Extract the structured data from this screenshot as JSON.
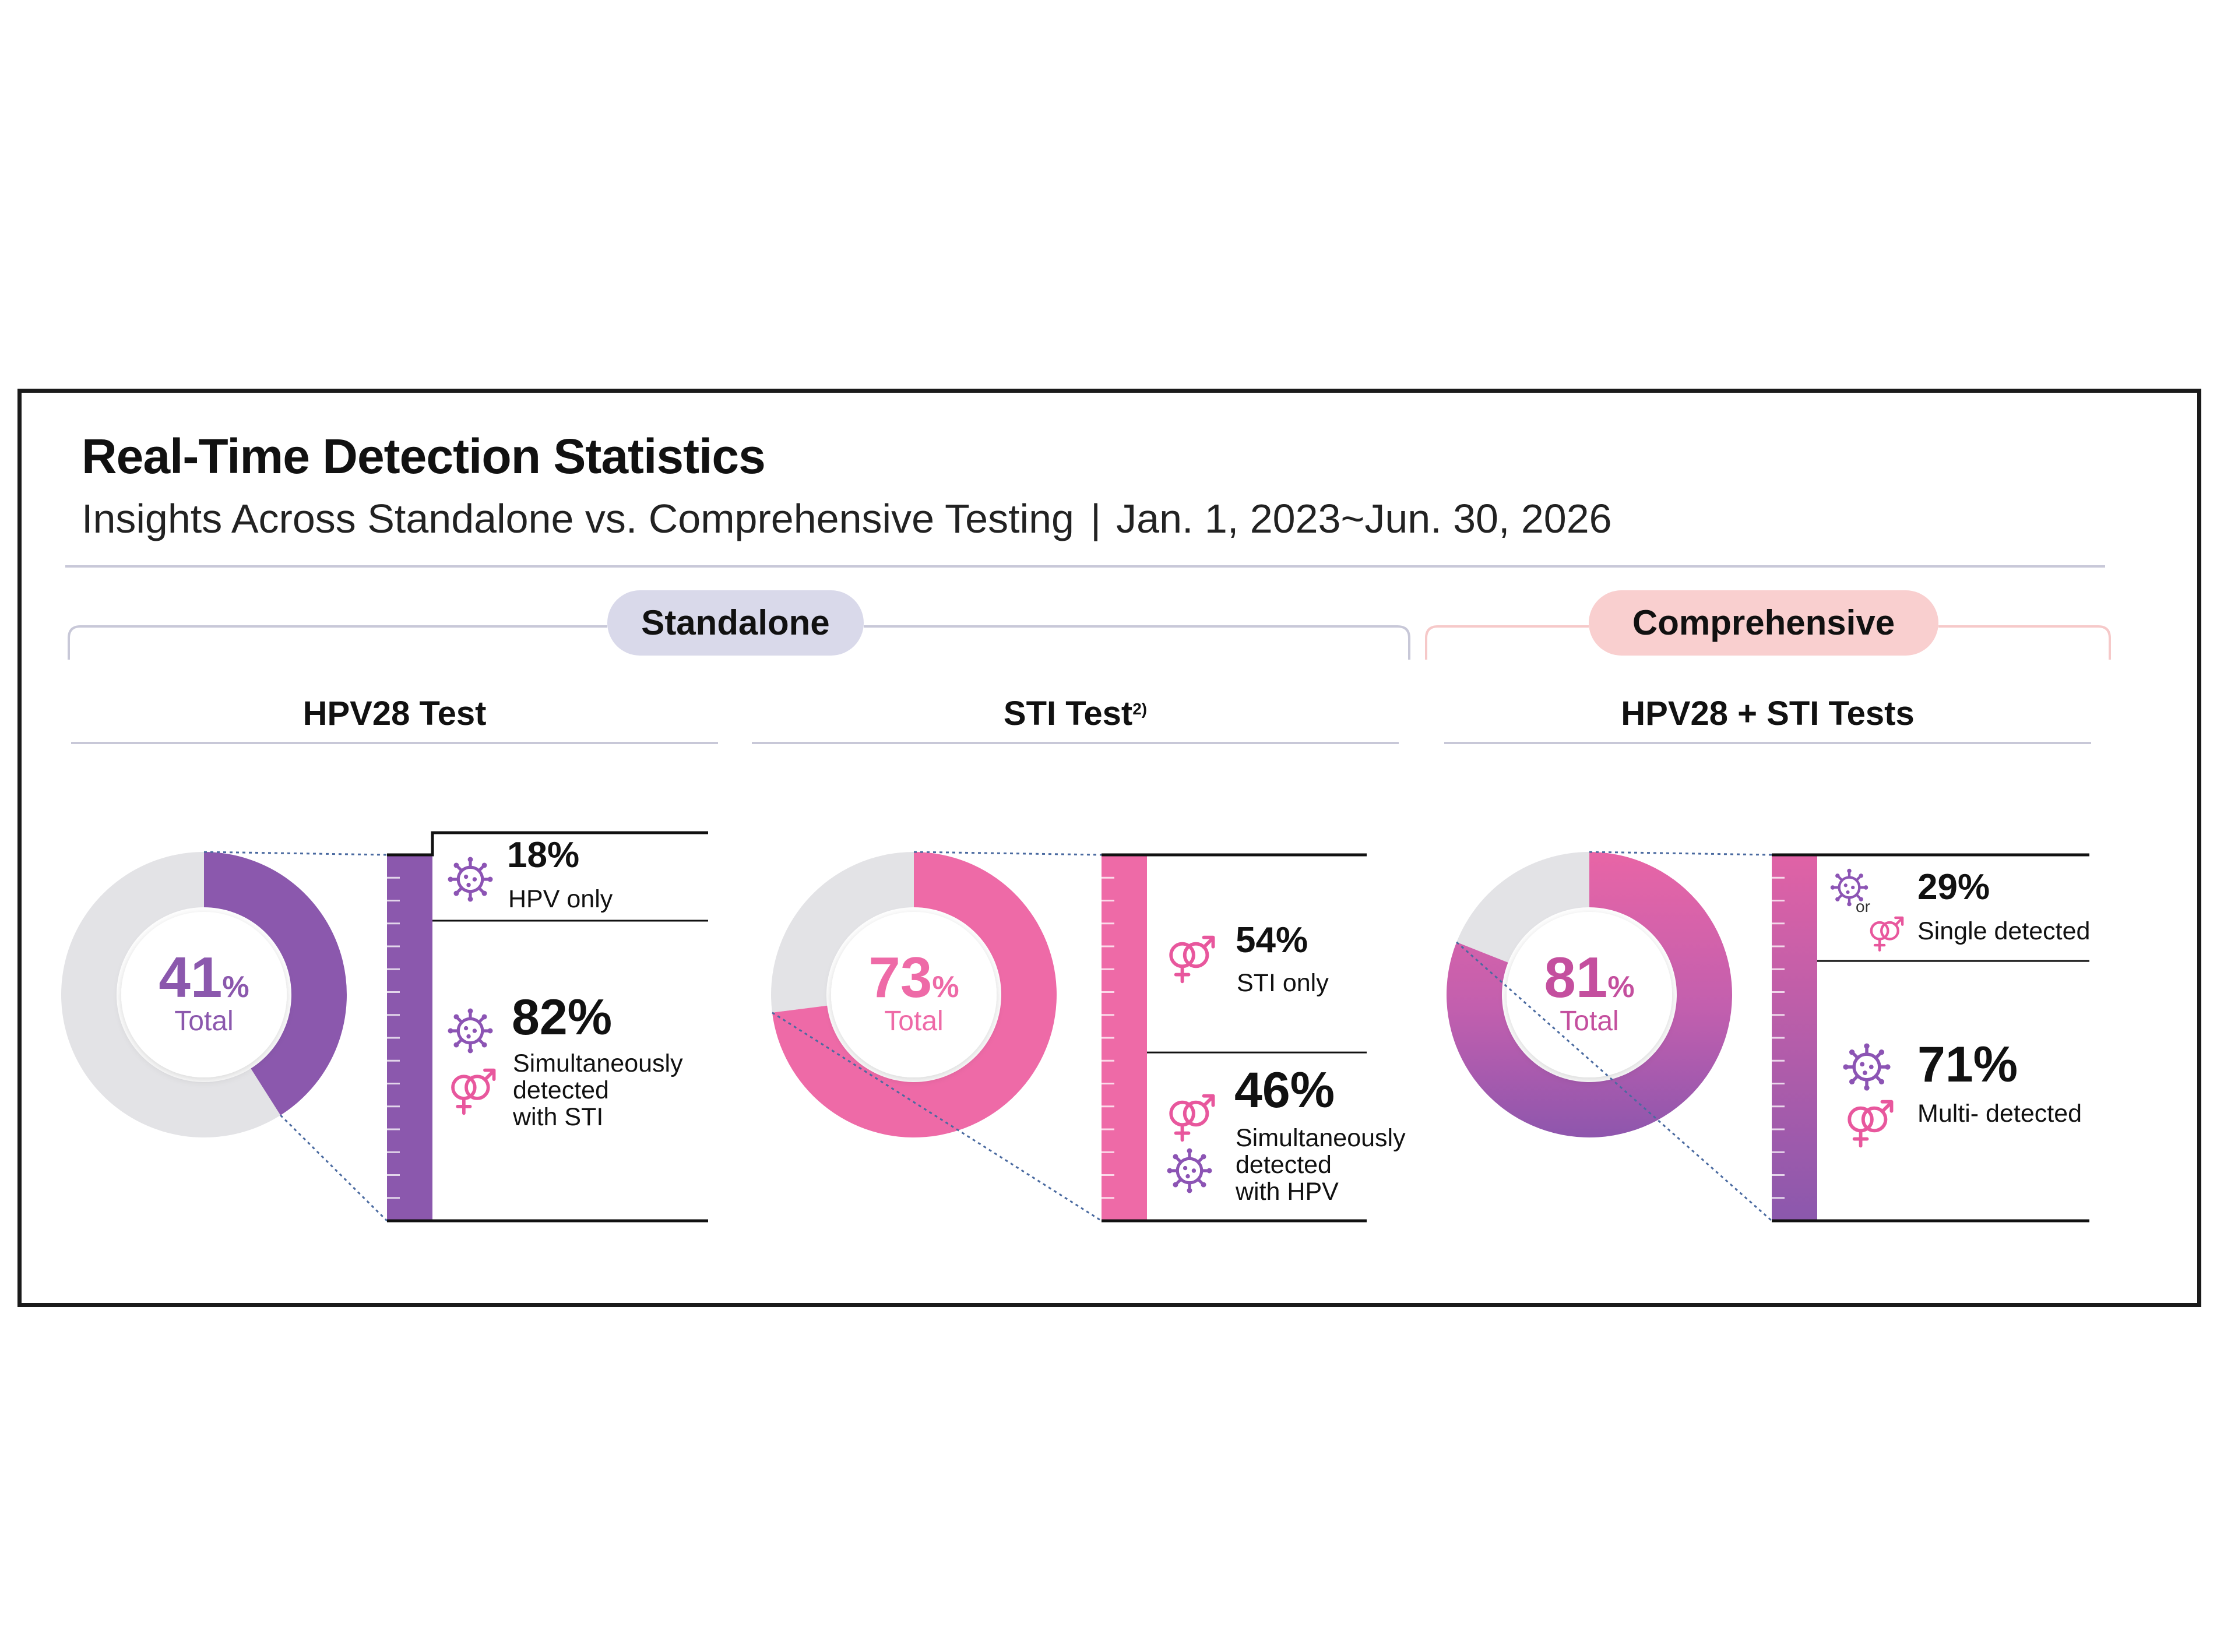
{
  "header": {
    "title": "Real-Time Detection Statistics",
    "subtitle": "Insights Across Standalone vs. Comprehensive Testing",
    "separator": "|",
    "date_range": "Jan. 1, 2023~Jun. 30, 2026"
  },
  "groups": {
    "standalone": "Standalone",
    "comprehensive": "Comprehensive"
  },
  "columns": {
    "hpv": {
      "title": "HPV28 Test"
    },
    "sti": {
      "title": "STI Test",
      "footnote": "2)"
    },
    "comp": {
      "title": "HPV28 + STI Tests"
    }
  },
  "colors": {
    "purple": "#8b58ad",
    "pink": "#ee6aa7",
    "gray_ring": "#e3e3e6",
    "icon_purple": "#8c54b4",
    "icon_pink": "#e8579d",
    "line": "#c8c8d8",
    "pill_standalone": "#d9d9ea",
    "pill_comprehensive": "#f9cfcf"
  },
  "icons": {
    "virus": "virus-icon",
    "gender": "gender-symbols-icon"
  },
  "chart_data": [
    {
      "type": "pie",
      "id": "hpv",
      "title": "HPV28 Test",
      "total": {
        "value": 41,
        "unit": "%",
        "label": "Total"
      },
      "breakdown": [
        {
          "value": 18,
          "display": "18%",
          "label": "HPV only"
        },
        {
          "value": 82,
          "display": "82%",
          "label": "Simultaneously detected with STI",
          "label_lines": [
            "Simultaneously",
            "detected",
            "with STI"
          ]
        }
      ]
    },
    {
      "type": "pie",
      "id": "sti",
      "title": "STI Test",
      "total": {
        "value": 73,
        "unit": "%",
        "label": "Total"
      },
      "breakdown": [
        {
          "value": 54,
          "display": "54%",
          "label": "STI only"
        },
        {
          "value": 46,
          "display": "46%",
          "label": "Simultaneously detected with HPV",
          "label_lines": [
            "Simultaneously",
            "detected",
            "with HPV"
          ]
        }
      ]
    },
    {
      "type": "pie",
      "id": "comp",
      "title": "HPV28 + STI Tests",
      "total": {
        "value": 81,
        "unit": "%",
        "label": "Total"
      },
      "breakdown": [
        {
          "value": 29,
          "display": "29%",
          "label": "Single detected",
          "connector": "or"
        },
        {
          "value": 71,
          "display": "71%",
          "label": "Multi- detected"
        }
      ]
    }
  ]
}
